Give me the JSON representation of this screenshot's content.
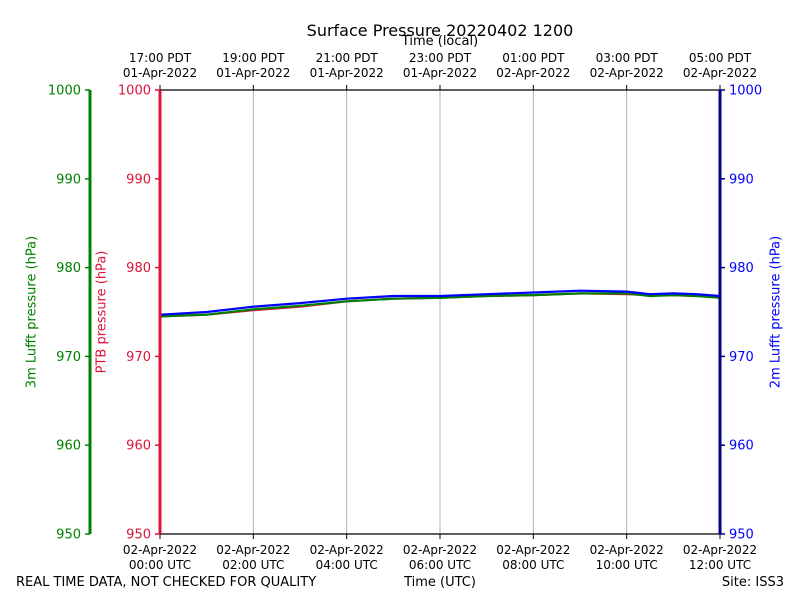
{
  "title": "Surface Pressure 20220402 1200",
  "footer_left": "REAL TIME DATA, NOT CHECKED FOR QUALITY",
  "footer_right": "Site: ISS3",
  "colors": {
    "green": "#008000",
    "crimson": "#dc143c",
    "blue": "#0000ff",
    "navy": "#00008b",
    "grid": "#b0b0b0"
  },
  "chart_data": {
    "type": "line",
    "title": "Surface Pressure 20220402 1200",
    "xlabel": "Time (UTC)",
    "xlabel_top": "Time (local)",
    "xlim_hours": [
      0,
      12
    ],
    "grid": true,
    "x_ticks_bottom": [
      {
        "h": 0,
        "line1": "02-Apr-2022",
        "line2": "00:00 UTC"
      },
      {
        "h": 2,
        "line1": "02-Apr-2022",
        "line2": "02:00 UTC"
      },
      {
        "h": 4,
        "line1": "02-Apr-2022",
        "line2": "04:00 UTC"
      },
      {
        "h": 6,
        "line1": "02-Apr-2022",
        "line2": "06:00 UTC"
      },
      {
        "h": 8,
        "line1": "02-Apr-2022",
        "line2": "08:00 UTC"
      },
      {
        "h": 10,
        "line1": "02-Apr-2022",
        "line2": "10:00 UTC"
      },
      {
        "h": 12,
        "line1": "02-Apr-2022",
        "line2": "12:00 UTC"
      }
    ],
    "x_ticks_top": [
      {
        "h": 0,
        "line1": "17:00 PDT",
        "line2": "01-Apr-2022"
      },
      {
        "h": 2,
        "line1": "19:00 PDT",
        "line2": "01-Apr-2022"
      },
      {
        "h": 4,
        "line1": "21:00 PDT",
        "line2": "01-Apr-2022"
      },
      {
        "h": 6,
        "line1": "23:00 PDT",
        "line2": "01-Apr-2022"
      },
      {
        "h": 8,
        "line1": "01:00 PDT",
        "line2": "02-Apr-2022"
      },
      {
        "h": 10,
        "line1": "03:00 PDT",
        "line2": "02-Apr-2022"
      },
      {
        "h": 12,
        "line1": "05:00 PDT",
        "line2": "02-Apr-2022"
      }
    ],
    "y_axes": [
      {
        "id": "lufft3m",
        "label": "3m Lufft pressure (hPa)",
        "ylim": [
          950,
          1000
        ],
        "ticks": [
          950,
          960,
          970,
          980,
          990,
          1000
        ],
        "color": "#008000"
      },
      {
        "id": "ptb",
        "label": "PTB pressure (hPa)",
        "ylim": [
          950,
          1000
        ],
        "ticks": [
          950,
          960,
          970,
          980,
          990,
          1000
        ],
        "color": "#dc143c"
      },
      {
        "id": "lufft2m",
        "label": "2m Lufft pressure (hPa)",
        "ylim": [
          950,
          1000
        ],
        "ticks": [
          950,
          960,
          970,
          980,
          990,
          1000
        ],
        "color": "#0000ff"
      }
    ],
    "series": [
      {
        "axis": "ptb",
        "color": "#dc143c",
        "x": [
          0,
          1,
          2,
          3,
          4,
          5,
          6,
          7,
          8,
          9,
          10,
          10.5,
          11,
          11.5,
          12
        ],
        "y": [
          974.5,
          974.7,
          975.2,
          975.6,
          976.2,
          976.5,
          976.6,
          976.8,
          976.9,
          977.1,
          977.0,
          976.9,
          976.9,
          976.8,
          976.7
        ]
      },
      {
        "axis": "lufft3m",
        "color": "#008000",
        "x": [
          0,
          1,
          2,
          3,
          4,
          5,
          6,
          7,
          8,
          9,
          10,
          10.5,
          11,
          11.5,
          12
        ],
        "y": [
          974.5,
          974.7,
          975.3,
          975.7,
          976.2,
          976.5,
          976.6,
          976.8,
          976.9,
          977.1,
          977.1,
          976.8,
          976.9,
          976.8,
          976.6
        ]
      },
      {
        "axis": "lufft2m",
        "color": "#0000ff",
        "x": [
          0,
          1,
          2,
          3,
          4,
          5,
          6,
          7,
          8,
          9,
          10,
          10.5,
          11,
          11.5,
          12
        ],
        "y": [
          974.7,
          975.0,
          975.6,
          976.0,
          976.5,
          976.8,
          976.8,
          977.0,
          977.2,
          977.4,
          977.3,
          977.0,
          977.1,
          977.0,
          976.8
        ]
      }
    ]
  }
}
